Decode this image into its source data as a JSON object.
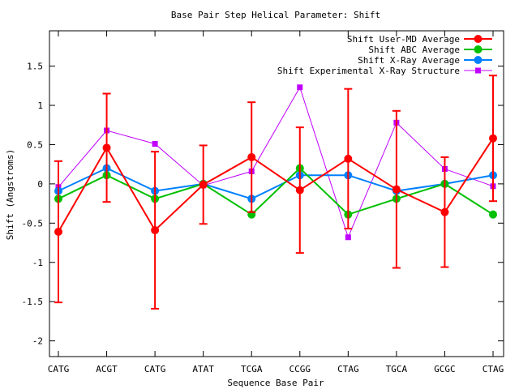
{
  "chart_data": {
    "type": "line",
    "title": "Base Pair Step Helical Parameter: Shift",
    "xlabel": "Sequence Base Pair",
    "ylabel": "Shift (Angstroms)",
    "ylim": [
      -2.2,
      1.95
    ],
    "yticks": [
      -2,
      -1.5,
      -1,
      -0.5,
      0,
      0.5,
      1,
      1.5
    ],
    "ytick_labels": [
      "-2",
      "-1.5",
      "-1",
      "-0.5",
      "0",
      "0.5",
      "1",
      "1.5"
    ],
    "categories": [
      "CATG",
      "ACGT",
      "CATG",
      "ATAT",
      "TCGA",
      "CCGG",
      "CTAG",
      "TGCA",
      "GCGC",
      "CTAG"
    ],
    "legend_position": "top-right",
    "series": [
      {
        "name": "Shift User-MD Average",
        "color": "#ff0000",
        "marker": "circle",
        "values": [
          -0.61,
          0.46,
          -0.59,
          -0.01,
          0.34,
          -0.08,
          0.32,
          -0.07,
          -0.36,
          0.58
        ],
        "error": [
          0.9,
          0.69,
          1.0,
          0.5,
          0.7,
          0.8,
          0.89,
          1.0,
          0.7,
          0.8
        ]
      },
      {
        "name": "Shift ABC Average",
        "color": "#00c000",
        "marker": "circle",
        "values": [
          -0.19,
          0.11,
          -0.19,
          0.0,
          -0.39,
          0.2,
          -0.39,
          -0.19,
          0.0,
          -0.39
        ]
      },
      {
        "name": "Shift X-Ray Average",
        "color": "#0080ff",
        "marker": "circle",
        "values": [
          -0.09,
          0.2,
          -0.09,
          0.0,
          -0.19,
          0.11,
          0.11,
          -0.09,
          0.0,
          0.11
        ]
      },
      {
        "name": "Shift Experimental X-Ray Structure",
        "color": "#c000ff",
        "marker": "square",
        "values": [
          -0.04,
          0.68,
          0.51,
          -0.02,
          0.16,
          1.23,
          -0.68,
          0.78,
          0.19,
          -0.03
        ]
      }
    ]
  }
}
